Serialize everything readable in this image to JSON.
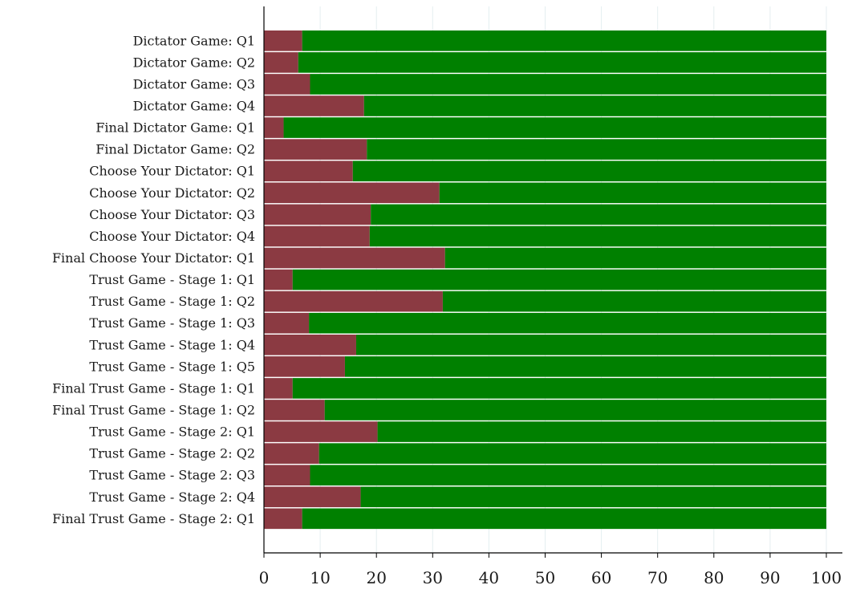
{
  "chart_data": {
    "type": "bar",
    "orientation": "horizontal",
    "stacked": true,
    "categories": [
      "Dictator Game: Q1",
      "Dictator Game: Q2",
      "Dictator Game: Q3",
      "Dictator Game: Q4",
      "Final Dictator Game: Q1",
      "Final Dictator Game: Q2",
      "Choose Your Dictator: Q1",
      "Choose Your Dictator: Q2",
      "Choose Your Dictator: Q3",
      "Choose Your Dictator: Q4",
      "Final Choose Your Dictator: Q1",
      "Trust Game - Stage 1: Q1",
      "Trust Game - Stage 1: Q2",
      "Trust Game - Stage 1: Q3",
      "Trust Game - Stage 1: Q4",
      "Trust Game - Stage 1: Q5",
      "Final Trust Game - Stage 1: Q1",
      "Final Trust Game - Stage 1: Q2",
      "Trust Game - Stage 2: Q1",
      "Trust Game - Stage 2: Q2",
      "Trust Game - Stage 2: Q3",
      "Trust Game - Stage 2: Q4",
      "Final Trust Game - Stage 2: Q1"
    ],
    "series": [
      {
        "color": "#8b3a42",
        "values": [
          6.8,
          6.1,
          8.2,
          17.8,
          3.5,
          18.3,
          15.8,
          31.2,
          19.0,
          18.8,
          32.2,
          5.1,
          31.8,
          8.0,
          16.4,
          14.4,
          5.1,
          10.8,
          20.2,
          9.8,
          8.2,
          17.2,
          6.8
        ]
      },
      {
        "color": "#008000",
        "values": [
          93.2,
          93.9,
          91.8,
          82.2,
          96.5,
          81.7,
          84.2,
          68.8,
          81.0,
          81.2,
          67.8,
          94.9,
          68.2,
          92.0,
          83.6,
          85.6,
          94.9,
          89.2,
          79.8,
          90.2,
          91.8,
          82.8,
          93.2
        ]
      }
    ],
    "xlim": [
      0,
      100
    ],
    "xticks": [
      0,
      10,
      20,
      30,
      40,
      50,
      60,
      70,
      80,
      90,
      100
    ],
    "xlabel": "",
    "ylabel": "",
    "title": "",
    "grid": "vertical"
  }
}
